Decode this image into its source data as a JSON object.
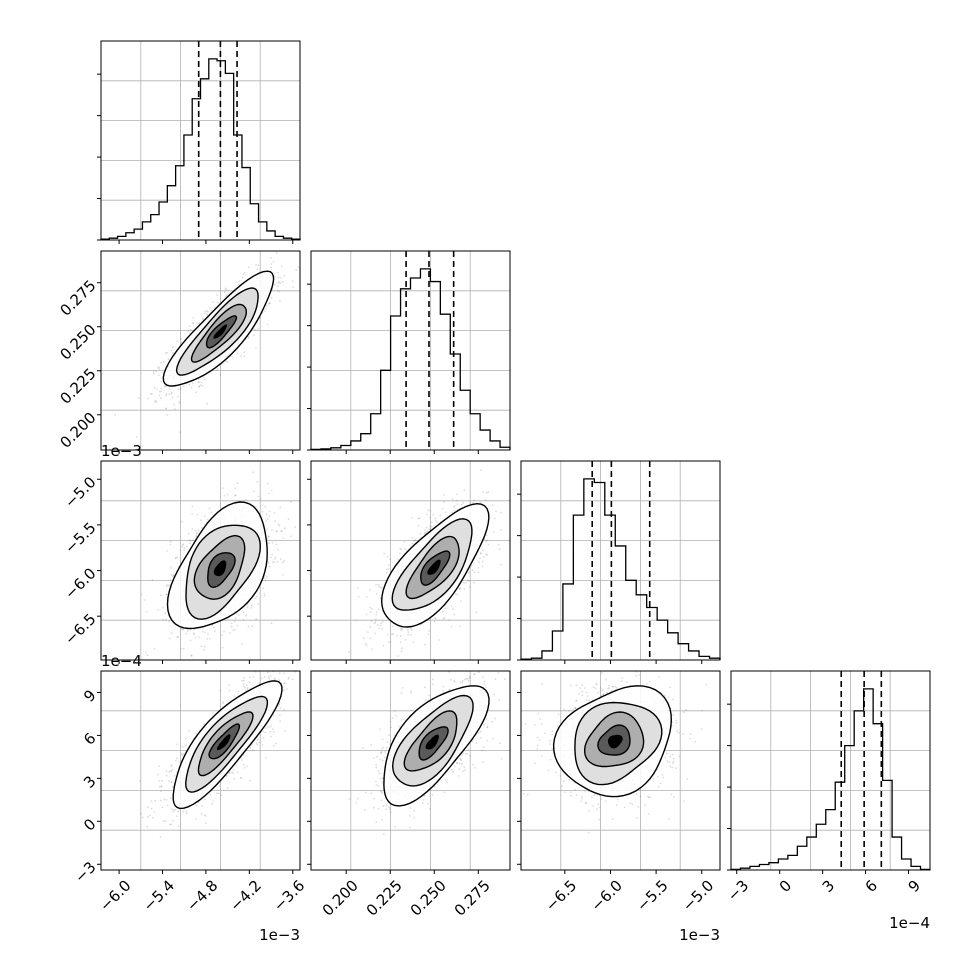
{
  "chart_data": {
    "type": "corner",
    "offsets": {
      "x0": "1e−3",
      "x2": "1e−3",
      "x3": "1e−4",
      "y2": "1e−3",
      "y3": "1e−4"
    },
    "params": [
      {
        "range": [
          -6.25,
          -3.5
        ],
        "ticks": [
          -6.0,
          -5.4,
          -4.8,
          -4.2,
          -3.6
        ],
        "tick_labels": [
          "−6.0",
          "−5.4",
          "−4.8",
          "−4.2",
          "−3.6"
        ],
        "quantiles": [
          -4.9,
          -4.6,
          -4.37
        ],
        "hist": [
          0.5,
          1,
          2,
          4,
          6,
          10,
          14,
          21,
          30,
          41,
          58,
          78,
          89,
          100,
          99,
          92,
          58,
          40,
          20,
          10,
          5,
          2,
          1,
          0.5
        ]
      },
      {
        "range": [
          0.18,
          0.293
        ],
        "ticks": [
          0.2,
          0.225,
          0.25,
          0.275
        ],
        "tick_labels": [
          "0.200",
          "0.225",
          "0.250",
          "0.275"
        ],
        "quantiles": [
          0.234,
          0.247,
          0.261
        ],
        "hist": [
          0.3,
          0.6,
          1.2,
          2.5,
          5,
          9,
          20,
          44,
          74,
          89,
          95,
          100,
          93,
          75,
          53,
          33,
          20,
          11,
          5,
          1.5
        ]
      },
      {
        "range": [
          -6.98,
          -4.8
        ],
        "ticks": [
          -6.5,
          -6.0,
          -5.5,
          -5.0
        ],
        "tick_labels": [
          "−6.5",
          "−6.0",
          "−5.5",
          "−5.0"
        ],
        "quantiles": [
          -6.2,
          -5.99,
          -5.57
        ],
        "hist": [
          0.5,
          1,
          5,
          16,
          42,
          80,
          100,
          98,
          80,
          63,
          44,
          36,
          29,
          22,
          15,
          9,
          5,
          2,
          1
        ]
      },
      {
        "range": [
          -3.4,
          10.5
        ],
        "ticks": [
          -3,
          0,
          3,
          6,
          9
        ],
        "tick_labels": [
          "−3",
          "0",
          "3",
          "6",
          "9"
        ],
        "quantiles": [
          4.3,
          5.9,
          7.1
        ],
        "hist": [
          0.3,
          1,
          2,
          3,
          4,
          6,
          8,
          13,
          18,
          25,
          33,
          48,
          68,
          87,
          99,
          80,
          49,
          18,
          6,
          2,
          0.3
        ]
      }
    ],
    "pairs": [
      {
        "row": 1,
        "col": 0,
        "mean": [
          -4.6,
          0.247
        ],
        "sd": [
          0.36,
          0.0155
        ],
        "rho": 0.82
      },
      {
        "row": 2,
        "col": 0,
        "mean": [
          -4.6,
          -5.98
        ],
        "sd": [
          0.34,
          0.33
        ],
        "rho": 0.4
      },
      {
        "row": 2,
        "col": 1,
        "mean": [
          0.25,
          -5.97
        ],
        "sd": [
          0.0145,
          0.32
        ],
        "rho": 0.65
      },
      {
        "row": 3,
        "col": 0,
        "mean": [
          -4.55,
          5.5
        ],
        "sd": [
          0.36,
          2.1
        ],
        "rho": 0.8
      },
      {
        "row": 3,
        "col": 1,
        "mean": [
          0.249,
          5.5
        ],
        "sd": [
          0.0145,
          2.0
        ],
        "rho": 0.62
      },
      {
        "row": 3,
        "col": 2,
        "mean": [
          -5.95,
          5.6
        ],
        "sd": [
          0.31,
          1.9
        ],
        "rho": 0.12
      }
    ]
  }
}
